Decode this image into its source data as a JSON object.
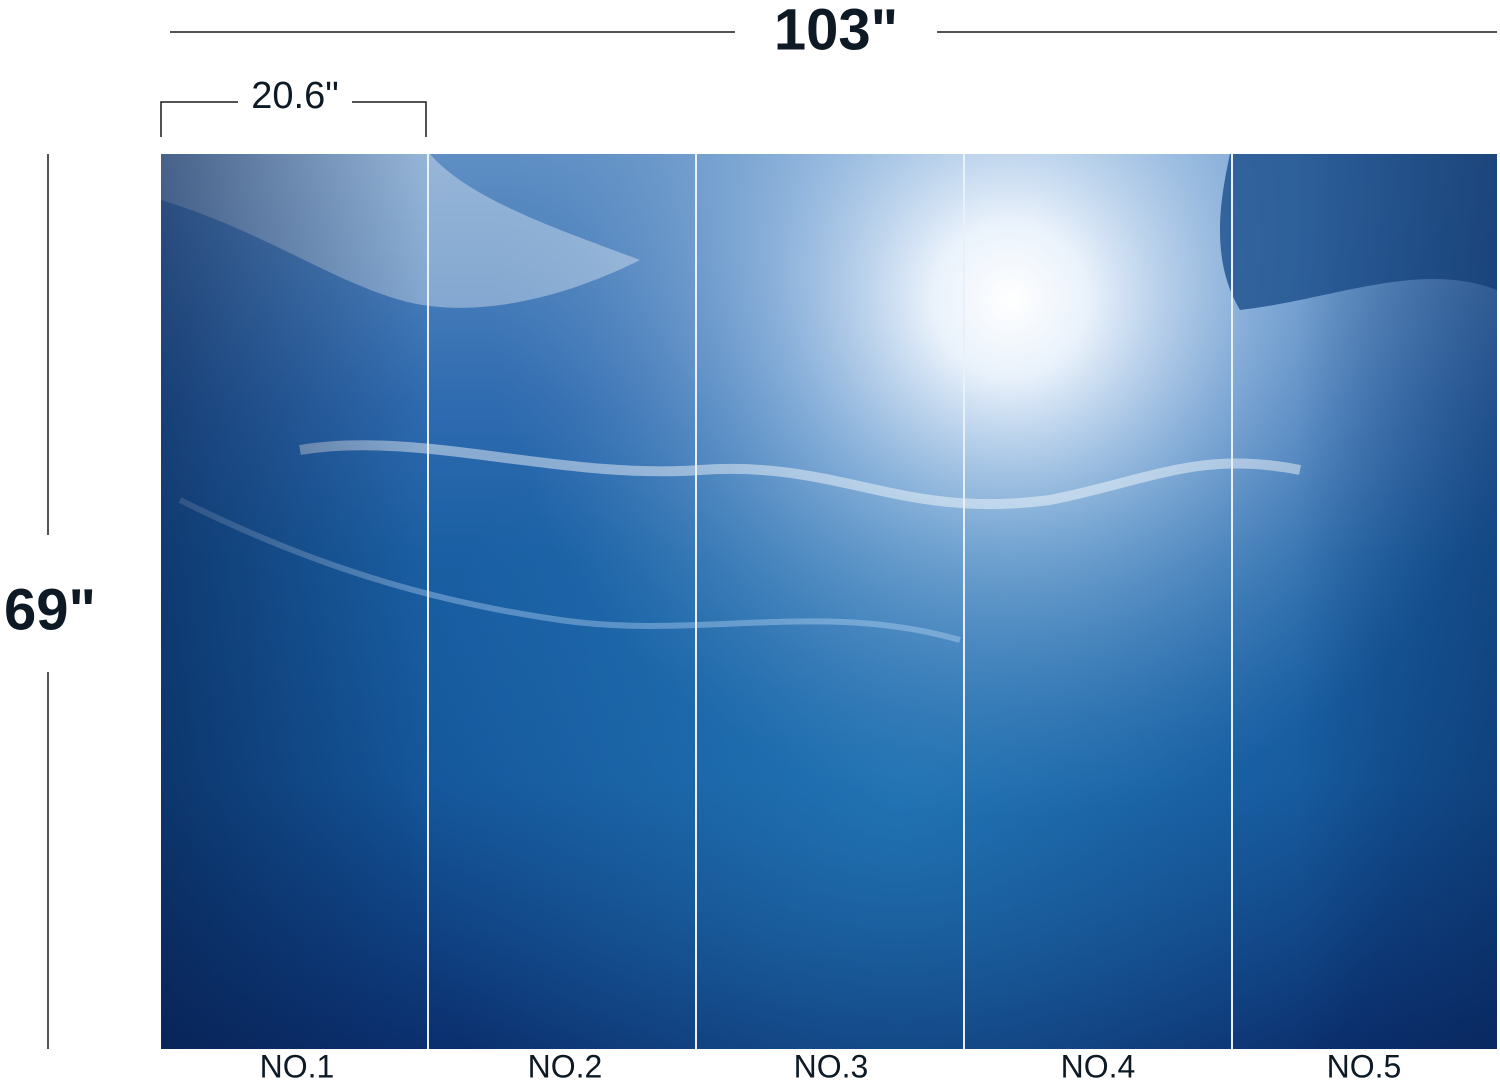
{
  "dimensions": {
    "total_width": "103\"",
    "panel_width": "20.6\"",
    "height": "69\""
  },
  "panels": [
    "NO.1",
    "NO.2",
    "NO.3",
    "NO.4",
    "NO.5"
  ]
}
